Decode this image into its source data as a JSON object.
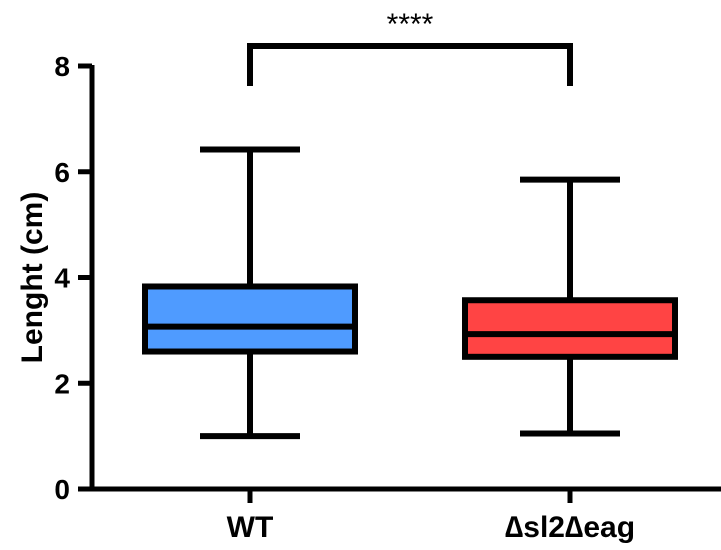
{
  "chart_data": {
    "type": "box",
    "title": "",
    "xlabel": "",
    "ylabel": "Lenght (cm)",
    "ylim": [
      0,
      8
    ],
    "yticks": [
      0,
      2,
      4,
      6,
      8
    ],
    "grid": false,
    "categories": [
      "WT",
      "∆sl2∆eag"
    ],
    "series": [
      {
        "category": "WT",
        "color": "#4f9bff",
        "min": 1.0,
        "q1": 2.6,
        "median": 3.07,
        "q3": 3.83,
        "max": 6.42
      },
      {
        "category": "∆sl2∆eag",
        "color": "#ff4444",
        "min": 1.05,
        "q1": 2.5,
        "median": 2.93,
        "q3": 3.57,
        "max": 5.85
      }
    ],
    "annotations": [
      {
        "type": "significance-bracket",
        "from": "WT",
        "to": "∆sl2∆eag",
        "label": "****"
      }
    ]
  }
}
